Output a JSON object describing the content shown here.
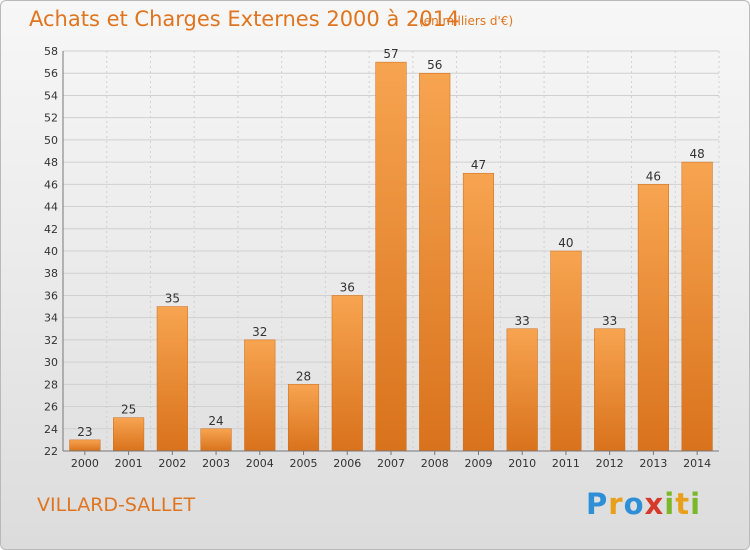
{
  "header": {
    "title": "Achats et Charges Externes 2000 à 2014",
    "subtitle": "(en milliers d'€)"
  },
  "footer": {
    "commune": "VILLARD-SALLET",
    "logo_text": "Proxiti"
  },
  "colors": {
    "accent": "#e07520",
    "bar_light": "#f7a450",
    "bar_dark": "#d9721c",
    "grid": "#d0d0d0"
  },
  "chart_data": {
    "type": "bar",
    "title": "Achats et Charges Externes 2000 à 2014",
    "subtitle": "(en milliers d'€)",
    "categories": [
      "2000",
      "2001",
      "2002",
      "2003",
      "2004",
      "2005",
      "2006",
      "2007",
      "2008",
      "2009",
      "2010",
      "2011",
      "2012",
      "2013",
      "2014"
    ],
    "values": [
      23,
      25,
      35,
      24,
      32,
      28,
      36,
      57,
      56,
      47,
      33,
      40,
      33,
      46,
      48
    ],
    "ylim": [
      22,
      58
    ],
    "yticks": [
      22,
      24,
      26,
      28,
      30,
      32,
      34,
      36,
      38,
      40,
      42,
      44,
      46,
      48,
      50,
      52,
      54,
      56,
      58
    ],
    "grid": true,
    "legend": "none"
  }
}
